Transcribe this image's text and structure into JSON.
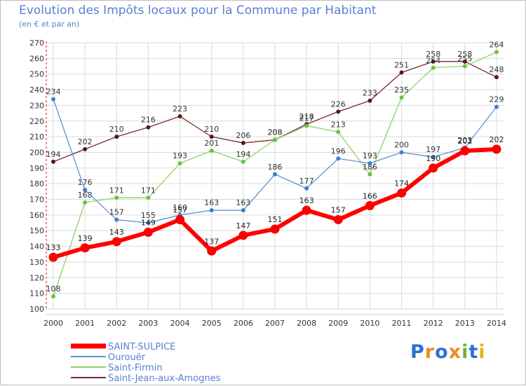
{
  "title": "Evolution des Impôts locaux pour la Commune par Habitant",
  "subtitle": "(en € et par an)",
  "logo": {
    "text": "Proxiti",
    "colors": [
      "#2f6fd8",
      "#f08a1c",
      "#2f6fd8",
      "#f08a1c",
      "#6cb33a",
      "#2f6fd8",
      "#e8b020"
    ]
  },
  "chart_data": {
    "type": "line",
    "x": [
      2000,
      2001,
      2002,
      2003,
      2004,
      2005,
      2006,
      2007,
      2008,
      2009,
      2010,
      2011,
      2012,
      2013,
      2014
    ],
    "ylim": [
      100,
      270
    ],
    "yticks": [
      100,
      110,
      120,
      130,
      140,
      150,
      160,
      170,
      180,
      190,
      200,
      210,
      220,
      230,
      240,
      250,
      260,
      270
    ],
    "grid": true,
    "legend": "bottom-left",
    "series": [
      {
        "name": "Saint-Jean-aux-Amognes",
        "color": "#7a2a2a",
        "marker": "#5c1515",
        "width": 1.3,
        "values": [
          194,
          202,
          210,
          216,
          223,
          210,
          206,
          208,
          218,
          226,
          233,
          251,
          258,
          258,
          248
        ],
        "labels": [
          "194",
          "202",
          "210",
          "216",
          "223",
          "210",
          "206",
          "208",
          "218",
          "226",
          "233",
          "251",
          "258",
          "258",
          "248"
        ]
      },
      {
        "name": "Saint-Firmin",
        "color": "#8ad46a",
        "marker": "#6cc23a",
        "width": 1.3,
        "values": [
          108,
          168,
          171,
          171,
          193,
          201,
          194,
          208,
          217,
          213,
          186,
          235,
          254,
          255,
          264
        ],
        "labels": [
          "108",
          "168",
          "171",
          "171",
          "193",
          "201",
          "194",
          "208",
          "217",
          "213",
          "186",
          "235",
          "254",
          "255",
          "264"
        ]
      },
      {
        "name": "Ourouër",
        "color": "#5b93d4",
        "marker": "#3a80cc",
        "width": 1.3,
        "values": [
          234,
          176,
          157,
          155,
          160,
          163,
          163,
          186,
          177,
          196,
          193,
          200,
          197,
          203,
          229
        ],
        "labels": [
          "234",
          "176",
          "157",
          "155",
          "160",
          "163",
          "163",
          "186",
          "177",
          "196",
          "193",
          "200",
          "197",
          "203",
          "229"
        ]
      },
      {
        "name": "SAINT-SULPICE",
        "color": "#ff0000",
        "marker": "#ff0000",
        "width": 6,
        "values": [
          133,
          139,
          143,
          149,
          157,
          137,
          147,
          151,
          163,
          157,
          166,
          174,
          190,
          201,
          202
        ],
        "labels": [
          "133",
          "139",
          "143",
          "149",
          "157",
          "137",
          "147",
          "151",
          "163",
          "157",
          "166",
          "174",
          "190",
          "201",
          "202"
        ]
      }
    ]
  },
  "legend": [
    {
      "label": "SAINT-SULPICE",
      "color": "#ff0000"
    },
    {
      "label": "Ourouër",
      "color": "#5b93d4"
    },
    {
      "label": "Saint-Firmin",
      "color": "#8ad46a"
    },
    {
      "label": "Saint-Jean-aux-Amognes",
      "color": "#7a2a2a"
    }
  ]
}
